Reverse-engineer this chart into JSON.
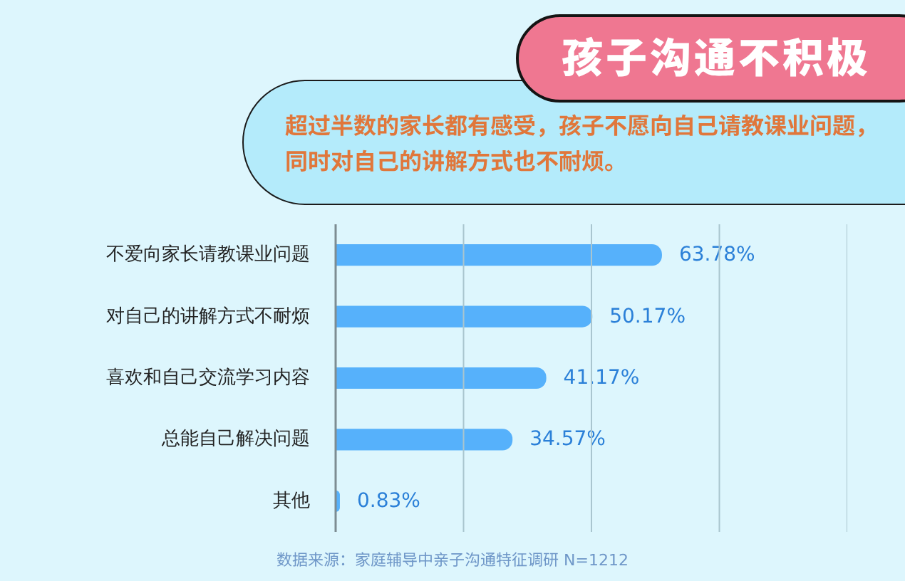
{
  "chart_data": {
    "type": "bar",
    "orientation": "horizontal",
    "title": "孩子沟通不积极",
    "subtitle": "超过半数的家长都有感受，孩子不愿向自己请教课业问题，同时对自己的讲解方式也不耐烦。",
    "categories": [
      "不爱向家长请教课业问题",
      "对自己的讲解方式不耐烦",
      "喜欢和自己交流学习内容",
      "总能自己解决问题",
      "其他"
    ],
    "values": [
      63.78,
      50.17,
      41.17,
      34.57,
      0.83
    ],
    "value_labels": [
      "63.78%",
      "50.17%",
      "41.17%",
      "34.57%",
      "0.83%"
    ],
    "color": "#56b1fb",
    "xlim": [
      0,
      100
    ],
    "xticks": [
      {
        "value": 25,
        "label": null
      },
      {
        "value": 50,
        "label": null
      },
      {
        "value": 75,
        "label": null
      },
      {
        "value": 100,
        "label": null
      }
    ],
    "grid": "x",
    "tick_labels": "y",
    "annotations": [
      "数据来源：家庭辅导中亲子沟通特征调研 N=1212"
    ]
  }
}
